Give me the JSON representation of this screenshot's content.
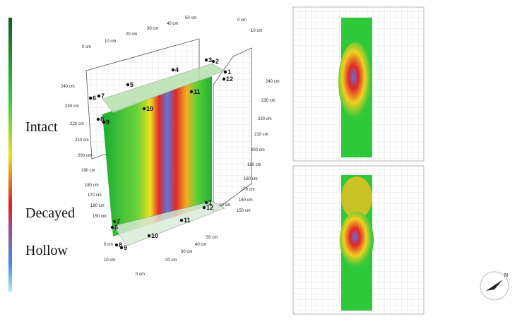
{
  "legend": {
    "labels": [
      "Intact",
      "Decayed",
      "Hollow"
    ]
  },
  "model": {
    "left_axis": [
      "240 cm",
      "230 cm",
      "220 cm",
      "210 cm",
      "200 cm",
      "190 cm",
      "180 cm",
      "170 cm",
      "160 cm",
      "150 cm"
    ],
    "right_axis": [
      "240 cm",
      "230 cm",
      "220 cm",
      "210 cm",
      "200 cm",
      "190 cm",
      "180 cm",
      "170 cm",
      "160 cm",
      "150 cm"
    ],
    "top_axis": [
      "0 cm",
      "10 cm",
      "20 cm",
      "30 cm",
      "40 cm",
      "50 cm",
      "0 cm",
      "10 cm"
    ],
    "bottom_axis": [
      "0 cm",
      "10 cm",
      "0 cm",
      "20 cm",
      "30 cm",
      "40 cm",
      "50 cm",
      "10 cm"
    ],
    "top_sensors": [
      "1",
      "2",
      "3",
      "4",
      "5",
      "6",
      "7",
      "8",
      "9",
      "10",
      "11",
      "12"
    ],
    "bottom_sensors": [
      "1",
      "12",
      "11",
      "10",
      "9",
      "8",
      "6",
      "7"
    ]
  },
  "compass": "N"
}
